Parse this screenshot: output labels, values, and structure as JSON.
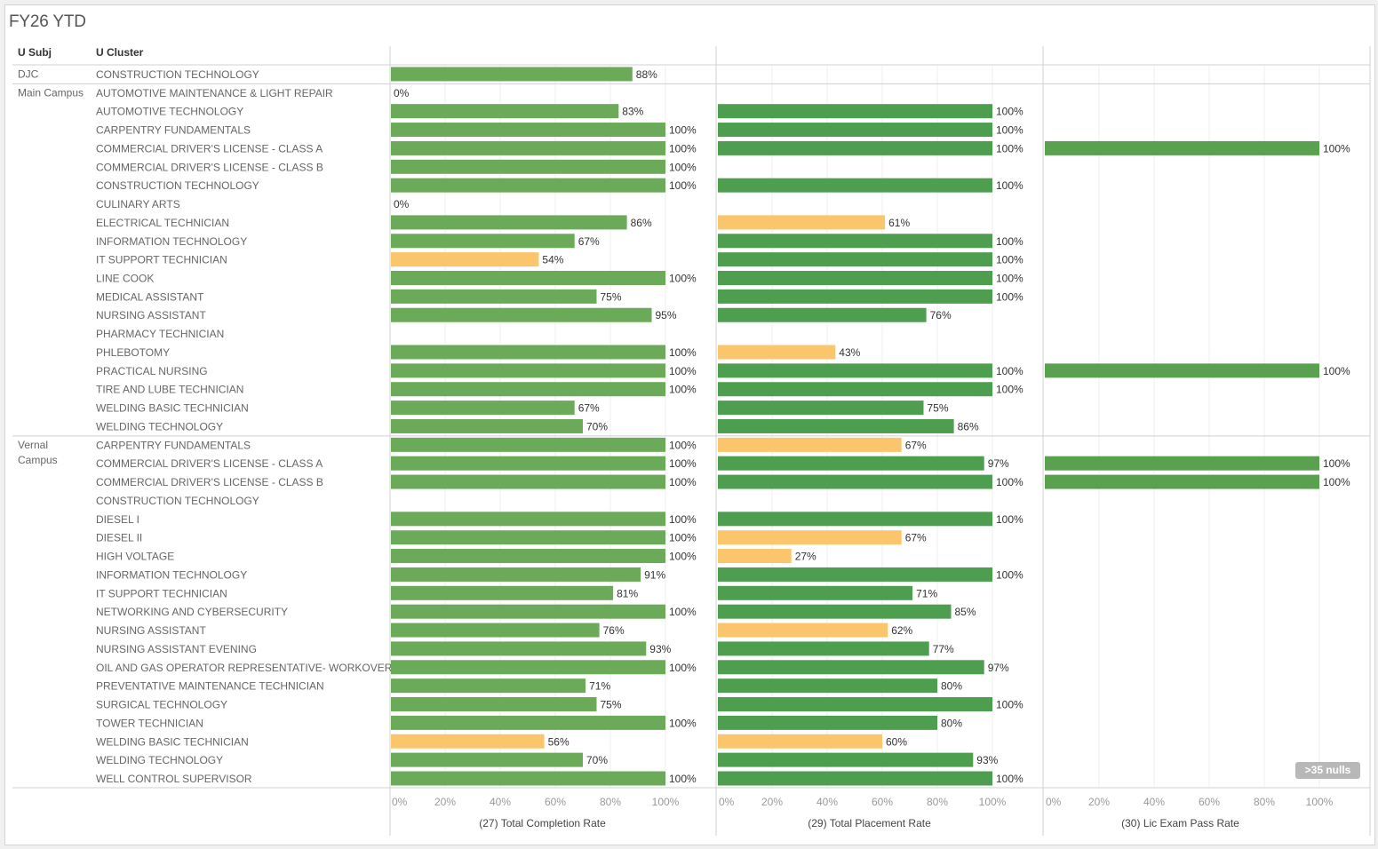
{
  "title": "FY26 YTD",
  "headers": {
    "subj": "U Subj",
    "cluster": "U Cluster"
  },
  "null_indicator": ">35 nulls",
  "colors": {
    "completion_green": "#6aaa58",
    "placement_green": "#4e9e50",
    "licexam_green": "#59a14f",
    "below_target": "#fbc56b"
  },
  "chart_data": {
    "type": "bar",
    "title": "FY26 YTD",
    "orientation": "horizontal",
    "measures": [
      "(27) Total Completion Rate",
      "(29) Total Placement Rate",
      "(30) Lic Exam Pass Rate"
    ],
    "x_ticks": [
      "0%",
      "20%",
      "40%",
      "60%",
      "80%",
      "100%"
    ],
    "xlim": [
      0,
      100
    ],
    "grid": true,
    "groups": [
      {
        "subj": "DJC",
        "rows": [
          {
            "cluster": "CONSTRUCTION TECHNOLOGY",
            "completion": 88,
            "placement": null,
            "licexam": null
          }
        ]
      },
      {
        "subj": "Main Campus",
        "rows": [
          {
            "cluster": "AUTOMOTIVE MAINTENANCE & LIGHT REPAIR",
            "completion": 0,
            "placement": null,
            "licexam": null
          },
          {
            "cluster": "AUTOMOTIVE TECHNOLOGY",
            "completion": 83,
            "placement": 100,
            "licexam": null
          },
          {
            "cluster": "CARPENTRY FUNDAMENTALS",
            "completion": 100,
            "placement": 100,
            "licexam": null
          },
          {
            "cluster": "COMMERCIAL DRIVER'S LICENSE - CLASS A",
            "completion": 100,
            "placement": 100,
            "licexam": 100
          },
          {
            "cluster": "COMMERCIAL DRIVER'S LICENSE - CLASS B",
            "completion": 100,
            "placement": null,
            "licexam": null
          },
          {
            "cluster": "CONSTRUCTION TECHNOLOGY",
            "completion": 100,
            "placement": 100,
            "licexam": null
          },
          {
            "cluster": "CULINARY ARTS",
            "completion": 0,
            "placement": null,
            "licexam": null
          },
          {
            "cluster": "ELECTRICAL TECHNICIAN",
            "completion": 86,
            "placement": 61,
            "licexam": null
          },
          {
            "cluster": "INFORMATION TECHNOLOGY",
            "completion": 67,
            "placement": 100,
            "licexam": null
          },
          {
            "cluster": "IT SUPPORT TECHNICIAN",
            "completion": 54,
            "placement": 100,
            "licexam": null
          },
          {
            "cluster": "LINE COOK",
            "completion": 100,
            "placement": 100,
            "licexam": null
          },
          {
            "cluster": "MEDICAL ASSISTANT",
            "completion": 75,
            "placement": 100,
            "licexam": null
          },
          {
            "cluster": "NURSING ASSISTANT",
            "completion": 95,
            "placement": 76,
            "licexam": null
          },
          {
            "cluster": "PHARMACY TECHNICIAN",
            "completion": null,
            "placement": null,
            "licexam": null
          },
          {
            "cluster": "PHLEBOTOMY",
            "completion": 100,
            "placement": 43,
            "licexam": null
          },
          {
            "cluster": "PRACTICAL NURSING",
            "completion": 100,
            "placement": 100,
            "licexam": 100
          },
          {
            "cluster": "TIRE AND LUBE TECHNICIAN",
            "completion": 100,
            "placement": 100,
            "licexam": null
          },
          {
            "cluster": "WELDING BASIC TECHNICIAN",
            "completion": 67,
            "placement": 75,
            "licexam": null
          },
          {
            "cluster": "WELDING TECHNOLOGY",
            "completion": 70,
            "placement": 86,
            "licexam": null
          }
        ]
      },
      {
        "subj": "Vernal Campus",
        "rows": [
          {
            "cluster": "CARPENTRY FUNDAMENTALS",
            "completion": 100,
            "placement": 67,
            "licexam": null
          },
          {
            "cluster": "COMMERCIAL DRIVER'S LICENSE - CLASS A",
            "completion": 100,
            "placement": 97,
            "licexam": 100
          },
          {
            "cluster": "COMMERCIAL DRIVER'S LICENSE - CLASS B",
            "completion": 100,
            "placement": 100,
            "licexam": 100
          },
          {
            "cluster": "CONSTRUCTION TECHNOLOGY",
            "completion": null,
            "placement": null,
            "licexam": null
          },
          {
            "cluster": "DIESEL I",
            "completion": 100,
            "placement": 100,
            "licexam": null
          },
          {
            "cluster": "DIESEL II",
            "completion": 100,
            "placement": 67,
            "licexam": null
          },
          {
            "cluster": "HIGH VOLTAGE",
            "completion": 100,
            "placement": 27,
            "licexam": null
          },
          {
            "cluster": "INFORMATION TECHNOLOGY",
            "completion": 91,
            "placement": 100,
            "licexam": null
          },
          {
            "cluster": "IT SUPPORT TECHNICIAN",
            "completion": 81,
            "placement": 71,
            "licexam": null
          },
          {
            "cluster": "NETWORKING AND CYBERSECURITY",
            "completion": 100,
            "placement": 85,
            "licexam": null
          },
          {
            "cluster": "NURSING ASSISTANT",
            "completion": 76,
            "placement": 62,
            "licexam": null
          },
          {
            "cluster": "NURSING ASSISTANT EVENING",
            "completion": 93,
            "placement": 77,
            "licexam": null
          },
          {
            "cluster": "OIL AND GAS OPERATOR REPRESENTATIVE- WORKOVER",
            "completion": 100,
            "placement": 97,
            "licexam": null
          },
          {
            "cluster": "PREVENTATIVE MAINTENANCE TECHNICIAN",
            "completion": 71,
            "placement": 80,
            "licexam": null
          },
          {
            "cluster": "SURGICAL TECHNOLOGY",
            "completion": 75,
            "placement": 100,
            "licexam": null
          },
          {
            "cluster": "TOWER TECHNICIAN",
            "completion": 100,
            "placement": 80,
            "licexam": null
          },
          {
            "cluster": "WELDING BASIC TECHNICIAN",
            "completion": 56,
            "placement": 60,
            "licexam": null
          },
          {
            "cluster": "WELDING TECHNOLOGY",
            "completion": 70,
            "placement": 93,
            "licexam": null
          },
          {
            "cluster": "WELL CONTROL SUPERVISOR",
            "completion": 100,
            "placement": 100,
            "licexam": null
          }
        ]
      }
    ],
    "below_target_flags": {
      "completion": [
        [
          "Main Campus",
          "IT SUPPORT TECHNICIAN"
        ],
        [
          "Vernal Campus",
          "WELDING BASIC TECHNICIAN"
        ]
      ],
      "placement": [
        [
          "Main Campus",
          "ELECTRICAL TECHNICIAN"
        ],
        [
          "Main Campus",
          "PHLEBOTOMY"
        ],
        [
          "Vernal Campus",
          "CARPENTRY FUNDAMENTALS"
        ],
        [
          "Vernal Campus",
          "DIESEL II"
        ],
        [
          "Vernal Campus",
          "HIGH VOLTAGE"
        ],
        [
          "Vernal Campus",
          "NURSING ASSISTANT"
        ],
        [
          "Vernal Campus",
          "WELDING BASIC TECHNICIAN"
        ]
      ]
    }
  }
}
